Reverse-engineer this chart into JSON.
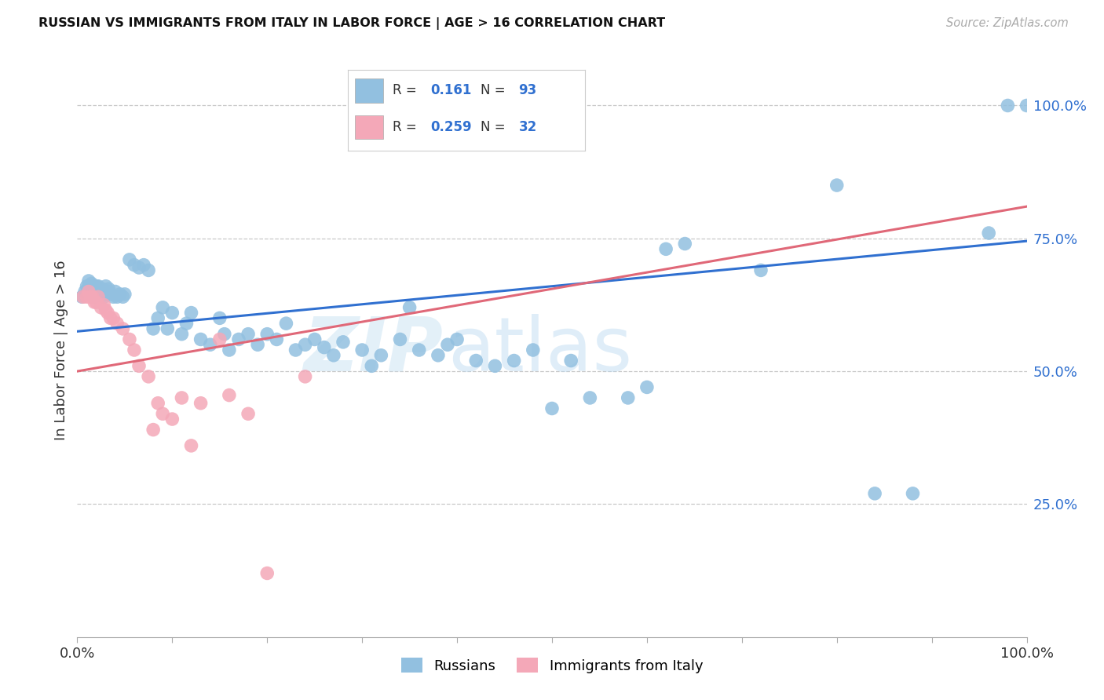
{
  "title": "RUSSIAN VS IMMIGRANTS FROM ITALY IN LABOR FORCE | AGE > 16 CORRELATION CHART",
  "source": "Source: ZipAtlas.com",
  "ylabel": "In Labor Force | Age > 16",
  "ytick_vals": [
    0.25,
    0.5,
    0.75,
    1.0
  ],
  "legend_label1": "Russians",
  "legend_label2": "Immigrants from Italy",
  "R1": "0.161",
  "N1": "93",
  "R2": "0.259",
  "N2": "32",
  "color_blue": "#92c0e0",
  "color_pink": "#f4a8b8",
  "color_blue_text": "#3070d0",
  "line_blue": "#3070d0",
  "line_pink": "#e06878",
  "watermark_zip": "ZIP",
  "watermark_atlas": "atlas",
  "background_color": "#ffffff",
  "grid_color": "#c8c8c8",
  "xlim": [
    0.0,
    1.0
  ],
  "ylim": [
    0.0,
    1.08
  ],
  "blue_points_x": [
    0.005,
    0.008,
    0.01,
    0.012,
    0.012,
    0.013,
    0.014,
    0.015,
    0.015,
    0.016,
    0.017,
    0.018,
    0.018,
    0.019,
    0.02,
    0.02,
    0.021,
    0.022,
    0.022,
    0.023,
    0.024,
    0.025,
    0.026,
    0.027,
    0.028,
    0.03,
    0.03,
    0.032,
    0.033,
    0.035,
    0.038,
    0.04,
    0.042,
    0.045,
    0.048,
    0.05,
    0.055,
    0.06,
    0.065,
    0.07,
    0.075,
    0.08,
    0.085,
    0.09,
    0.095,
    0.1,
    0.11,
    0.115,
    0.12,
    0.13,
    0.14,
    0.15,
    0.155,
    0.16,
    0.17,
    0.18,
    0.19,
    0.2,
    0.21,
    0.22,
    0.23,
    0.24,
    0.25,
    0.26,
    0.27,
    0.28,
    0.3,
    0.31,
    0.32,
    0.34,
    0.35,
    0.36,
    0.38,
    0.39,
    0.4,
    0.42,
    0.44,
    0.46,
    0.48,
    0.5,
    0.52,
    0.54,
    0.58,
    0.6,
    0.62,
    0.64,
    0.72,
    0.8,
    0.84,
    0.88,
    0.96,
    0.98,
    1.0
  ],
  "blue_points_y": [
    0.64,
    0.65,
    0.66,
    0.66,
    0.67,
    0.655,
    0.645,
    0.65,
    0.665,
    0.655,
    0.64,
    0.65,
    0.66,
    0.655,
    0.645,
    0.66,
    0.65,
    0.65,
    0.66,
    0.655,
    0.645,
    0.65,
    0.655,
    0.65,
    0.64,
    0.645,
    0.66,
    0.65,
    0.655,
    0.645,
    0.64,
    0.65,
    0.64,
    0.645,
    0.64,
    0.645,
    0.71,
    0.7,
    0.695,
    0.7,
    0.69,
    0.58,
    0.6,
    0.62,
    0.58,
    0.61,
    0.57,
    0.59,
    0.61,
    0.56,
    0.55,
    0.6,
    0.57,
    0.54,
    0.56,
    0.57,
    0.55,
    0.57,
    0.56,
    0.59,
    0.54,
    0.55,
    0.56,
    0.545,
    0.53,
    0.555,
    0.54,
    0.51,
    0.53,
    0.56,
    0.62,
    0.54,
    0.53,
    0.55,
    0.56,
    0.52,
    0.51,
    0.52,
    0.54,
    0.43,
    0.52,
    0.45,
    0.45,
    0.47,
    0.73,
    0.74,
    0.69,
    0.85,
    0.27,
    0.27,
    0.76,
    1.0,
    1.0
  ],
  "pink_points_x": [
    0.006,
    0.01,
    0.012,
    0.014,
    0.016,
    0.018,
    0.02,
    0.022,
    0.025,
    0.028,
    0.03,
    0.032,
    0.035,
    0.038,
    0.042,
    0.048,
    0.055,
    0.06,
    0.065,
    0.075,
    0.08,
    0.085,
    0.09,
    0.1,
    0.11,
    0.12,
    0.13,
    0.15,
    0.16,
    0.18,
    0.2,
    0.24
  ],
  "pink_points_y": [
    0.64,
    0.64,
    0.65,
    0.64,
    0.64,
    0.63,
    0.63,
    0.64,
    0.62,
    0.625,
    0.615,
    0.61,
    0.6,
    0.6,
    0.59,
    0.58,
    0.56,
    0.54,
    0.51,
    0.49,
    0.39,
    0.44,
    0.42,
    0.41,
    0.45,
    0.36,
    0.44,
    0.56,
    0.455,
    0.42,
    0.12,
    0.49
  ],
  "blue_line_x0": 0.0,
  "blue_line_x1": 1.0,
  "blue_line_y0": 0.575,
  "blue_line_y1": 0.745,
  "pink_line_x0": 0.0,
  "pink_line_x1": 1.0,
  "pink_line_y0": 0.5,
  "pink_line_y1": 0.81
}
